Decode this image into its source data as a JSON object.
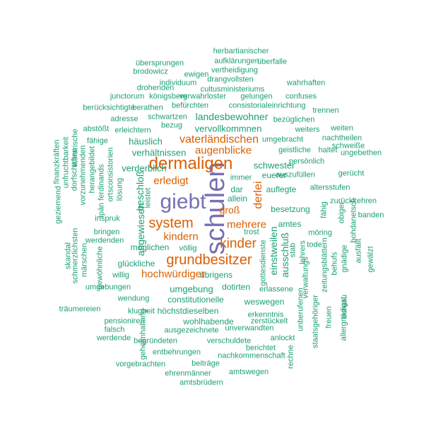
{
  "palette": {
    "teal": "#1b9e77",
    "orange": "#d95f02",
    "purple": "#7570b3"
  },
  "words": [
    {
      "text": "schulen",
      "color": "purple",
      "vertical": true
    },
    {
      "text": "giebt",
      "color": "purple",
      "vertical": false
    },
    {
      "text": "dermaligen",
      "color": "orange",
      "vertical": false
    },
    {
      "text": "grundbesitzer",
      "color": "orange",
      "vertical": false
    },
    {
      "text": "system",
      "color": "orange",
      "vertical": false
    },
    {
      "text": "kinder",
      "color": "orange",
      "vertical": false
    },
    {
      "text": "vaterländischen",
      "color": "orange",
      "vertical": false
    },
    {
      "text": "augenblicke",
      "color": "orange",
      "vertical": false
    },
    {
      "text": "hochwürdiger",
      "color": "orange",
      "vertical": false
    },
    {
      "text": "mehrere",
      "color": "orange",
      "vertical": false
    },
    {
      "text": "kindern",
      "color": "orange",
      "vertical": false
    },
    {
      "text": "erledigt",
      "color": "orange",
      "vertical": false
    },
    {
      "text": "derlei",
      "color": "orange",
      "vertical": true
    },
    {
      "text": "groß",
      "color": "orange",
      "vertical": false
    },
    {
      "text": "landesbewohner",
      "color": "teal",
      "vertical": false
    },
    {
      "text": "häuslich",
      "color": "teal",
      "vertical": false
    },
    {
      "text": "vervollkommnen",
      "color": "teal",
      "vertical": false
    },
    {
      "text": "verhältnissen",
      "color": "teal",
      "vertical": false
    },
    {
      "text": "schwester",
      "color": "teal",
      "vertical": false
    },
    {
      "text": "verderblich",
      "color": "teal",
      "vertical": false
    },
    {
      "text": "euerer",
      "color": "teal",
      "vertical": false
    },
    {
      "text": "dar",
      "color": "teal",
      "vertical": false
    },
    {
      "text": "auflegte",
      "color": "teal",
      "vertical": false
    },
    {
      "text": "allein",
      "color": "teal",
      "vertical": false
    },
    {
      "text": "besetzung",
      "color": "teal",
      "vertical": false
    },
    {
      "text": "amtes",
      "color": "teal",
      "vertical": false
    },
    {
      "text": "einstweilen",
      "color": "teal",
      "vertical": true
    },
    {
      "text": "ausschluß",
      "color": "teal",
      "vertical": true
    },
    {
      "text": "möglichen",
      "color": "teal",
      "vertical": false
    },
    {
      "text": "glückliche",
      "color": "teal",
      "vertical": false
    },
    {
      "text": "übrigens",
      "color": "teal",
      "vertical": false
    },
    {
      "text": "umgebung",
      "color": "teal",
      "vertical": false
    },
    {
      "text": "dotirten",
      "color": "teal",
      "vertical": false
    },
    {
      "text": "constitutionelle",
      "color": "teal",
      "vertical": false
    },
    {
      "text": "weswegen",
      "color": "teal",
      "vertical": false
    },
    {
      "text": "höchstdieselben",
      "color": "teal",
      "vertical": false
    },
    {
      "text": "wohlhabende",
      "color": "teal",
      "vertical": false
    },
    {
      "text": "beschloß",
      "color": "teal",
      "vertical": true
    },
    {
      "text": "angewiesen",
      "color": "teal",
      "vertical": true
    },
    {
      "text": "herbartianischer",
      "color": "teal",
      "vertical": false
    },
    {
      "text": "aufklärungen",
      "color": "teal",
      "vertical": false
    },
    {
      "text": "überfalle",
      "color": "teal",
      "vertical": false
    },
    {
      "text": "übersprungen",
      "color": "teal",
      "vertical": false
    },
    {
      "text": "vertheidigung",
      "color": "teal",
      "vertical": false
    },
    {
      "text": "brodowicz",
      "color": "teal",
      "vertical": false
    },
    {
      "text": "ewigen",
      "color": "teal",
      "vertical": false
    },
    {
      "text": "drangvollsten",
      "color": "teal",
      "vertical": false
    },
    {
      "text": "individuum",
      "color": "teal",
      "vertical": false
    },
    {
      "text": "wahrhaften",
      "color": "teal",
      "vertical": false
    },
    {
      "text": "drohenden",
      "color": "teal",
      "vertical": false
    },
    {
      "text": "cultusministeriums",
      "color": "teal",
      "vertical": false
    },
    {
      "text": "junctorum",
      "color": "teal",
      "vertical": false
    },
    {
      "text": "königsberg",
      "color": "teal",
      "vertical": false
    },
    {
      "text": "verwahrloster",
      "color": "teal",
      "vertical": false
    },
    {
      "text": "gelungen",
      "color": "teal",
      "vertical": false
    },
    {
      "text": "confuses",
      "color": "teal",
      "vertical": false
    },
    {
      "text": "berücksichtigte",
      "color": "teal",
      "vertical": false
    },
    {
      "text": "berathen",
      "color": "teal",
      "vertical": false
    },
    {
      "text": "befürchten",
      "color": "teal",
      "vertical": false
    },
    {
      "text": "consistorialeinrichtung",
      "color": "teal",
      "vertical": false
    },
    {
      "text": "trennen",
      "color": "teal",
      "vertical": false
    },
    {
      "text": "adresse",
      "color": "teal",
      "vertical": false
    },
    {
      "text": "schwartzen",
      "color": "teal",
      "vertical": false
    },
    {
      "text": "bezüglichen",
      "color": "teal",
      "vertical": false
    },
    {
      "text": "abstößt",
      "color": "teal",
      "vertical": false
    },
    {
      "text": "erleichtern",
      "color": "teal",
      "vertical": false
    },
    {
      "text": "bezug",
      "color": "teal",
      "vertical": false
    },
    {
      "text": "weiters",
      "color": "teal",
      "vertical": false
    },
    {
      "text": "weiten",
      "color": "teal",
      "vertical": false
    },
    {
      "text": "umgebracht",
      "color": "teal",
      "vertical": false
    },
    {
      "text": "nachtheilen",
      "color": "teal",
      "vertical": false
    },
    {
      "text": "fähige",
      "color": "teal",
      "vertical": false
    },
    {
      "text": "geistliche",
      "color": "teal",
      "vertical": false
    },
    {
      "text": "haltet",
      "color": "teal",
      "vertical": false
    },
    {
      "text": "schweiße",
      "color": "teal",
      "vertical": false
    },
    {
      "text": "ungebethen",
      "color": "teal",
      "vertical": false
    },
    {
      "text": "persönlich",
      "color": "teal",
      "vertical": false
    },
    {
      "text": "auszufüllen",
      "color": "teal",
      "vertical": false
    },
    {
      "text": "gerücht",
      "color": "teal",
      "vertical": false
    },
    {
      "text": "immer",
      "color": "teal",
      "vertical": false
    },
    {
      "text": "altersstufen",
      "color": "teal",
      "vertical": false
    },
    {
      "text": "zurückkehren",
      "color": "teal",
      "vertical": false
    },
    {
      "text": "banden",
      "color": "teal",
      "vertical": false
    },
    {
      "text": "inspruk",
      "color": "teal",
      "vertical": false
    },
    {
      "text": "bringen",
      "color": "teal",
      "vertical": false
    },
    {
      "text": "werdenden",
      "color": "teal",
      "vertical": false
    },
    {
      "text": "trost",
      "color": "teal",
      "vertical": false
    },
    {
      "text": "möring",
      "color": "teal",
      "vertical": false
    },
    {
      "text": "tode",
      "color": "teal",
      "vertical": false
    },
    {
      "text": "völlig",
      "color": "teal",
      "vertical": false
    },
    {
      "text": "willig",
      "color": "teal",
      "vertical": false
    },
    {
      "text": "umgebungen",
      "color": "teal",
      "vertical": false
    },
    {
      "text": "erlassene",
      "color": "teal",
      "vertical": false
    },
    {
      "text": "wendung",
      "color": "teal",
      "vertical": false
    },
    {
      "text": "klugheit",
      "color": "teal",
      "vertical": false
    },
    {
      "text": "erkenntnis",
      "color": "teal",
      "vertical": false
    },
    {
      "text": "träumereien",
      "color": "teal",
      "vertical": false
    },
    {
      "text": "pensioniren",
      "color": "teal",
      "vertical": false
    },
    {
      "text": "zerstückelt",
      "color": "teal",
      "vertical": false
    },
    {
      "text": "falsch",
      "color": "teal",
      "vertical": false
    },
    {
      "text": "ausgezeichnete",
      "color": "teal",
      "vertical": false
    },
    {
      "text": "unverwandten",
      "color": "teal",
      "vertical": false
    },
    {
      "text": "werdende",
      "color": "teal",
      "vertical": false
    },
    {
      "text": "begründeten",
      "color": "teal",
      "vertical": false
    },
    {
      "text": "verschuldete",
      "color": "teal",
      "vertical": false
    },
    {
      "text": "anlockt",
      "color": "teal",
      "vertical": false
    },
    {
      "text": "berichtet",
      "color": "teal",
      "vertical": false
    },
    {
      "text": "entbehrungen",
      "color": "teal",
      "vertical": false
    },
    {
      "text": "nachkommenschaft",
      "color": "teal",
      "vertical": false
    },
    {
      "text": "vorgebrachten",
      "color": "teal",
      "vertical": false
    },
    {
      "text": "beiträge",
      "color": "teal",
      "vertical": false
    },
    {
      "text": "ehrenmänner",
      "color": "teal",
      "vertical": false
    },
    {
      "text": "amtswegen",
      "color": "teal",
      "vertical": false
    },
    {
      "text": "amtsbrüdern",
      "color": "teal",
      "vertical": false
    },
    {
      "text": "literarische",
      "color": "teal",
      "vertical": true
    },
    {
      "text": "finanzkräften",
      "color": "teal",
      "vertical": true
    },
    {
      "text": "unfruchtbarkeit",
      "color": "teal",
      "vertical": true
    },
    {
      "text": "dorfschaften",
      "color": "teal",
      "vertical": true
    },
    {
      "text": "vorzunehmenden",
      "color": "teal",
      "vertical": true
    },
    {
      "text": "herangebildet",
      "color": "teal",
      "vertical": true
    },
    {
      "text": "ortsconsistorien",
      "color": "teal",
      "vertical": true
    },
    {
      "text": "ipán ferdinands",
      "color": "teal",
      "vertical": true
    },
    {
      "text": "lösung",
      "color": "teal",
      "vertical": true
    },
    {
      "text": "leistet",
      "color": "teal",
      "vertical": true
    },
    {
      "text": "geziemend",
      "color": "teal",
      "vertical": true
    },
    {
      "text": "skandal",
      "color": "teal",
      "vertical": true
    },
    {
      "text": "schmerzlichsten",
      "color": "teal",
      "vertical": true
    },
    {
      "text": "märschen",
      "color": "teal",
      "vertical": true
    },
    {
      "text": "gewöhnliche",
      "color": "teal",
      "vertical": true
    },
    {
      "text": "gottesdienste",
      "color": "teal",
      "vertical": true
    },
    {
      "text": "stab",
      "color": "teal",
      "vertical": true
    },
    {
      "text": "lehrers",
      "color": "teal",
      "vertical": true
    },
    {
      "text": "verwaltungs",
      "color": "teal",
      "vertical": true
    },
    {
      "text": "unberufenen",
      "color": "teal",
      "vertical": true
    },
    {
      "text": "staatsgehöriger",
      "color": "teal",
      "vertical": true
    },
    {
      "text": "freuen",
      "color": "teal",
      "vertical": true
    },
    {
      "text": "bureau",
      "color": "teal",
      "vertical": true
    },
    {
      "text": "zeitungsblättern",
      "color": "teal",
      "vertical": true
    },
    {
      "text": "behufs",
      "color": "teal",
      "vertical": true
    },
    {
      "text": "fähig",
      "color": "teal",
      "vertical": true
    },
    {
      "text": "obiger",
      "color": "teal",
      "vertical": true
    },
    {
      "text": "gnädige",
      "color": "teal",
      "vertical": true
    },
    {
      "text": "allergnädigst",
      "color": "teal",
      "vertical": true
    },
    {
      "text": "bohdanetsch",
      "color": "teal",
      "vertical": true
    },
    {
      "text": "ausfällt",
      "color": "teal",
      "vertical": true
    },
    {
      "text": "gewälzt",
      "color": "teal",
      "vertical": true
    },
    {
      "text": "geheimhaltung",
      "color": "teal",
      "vertical": true
    },
    {
      "text": "rechne",
      "color": "teal",
      "vertical": true
    },
    {
      "text": "befaßt",
      "color": "teal",
      "vertical": true
    }
  ]
}
